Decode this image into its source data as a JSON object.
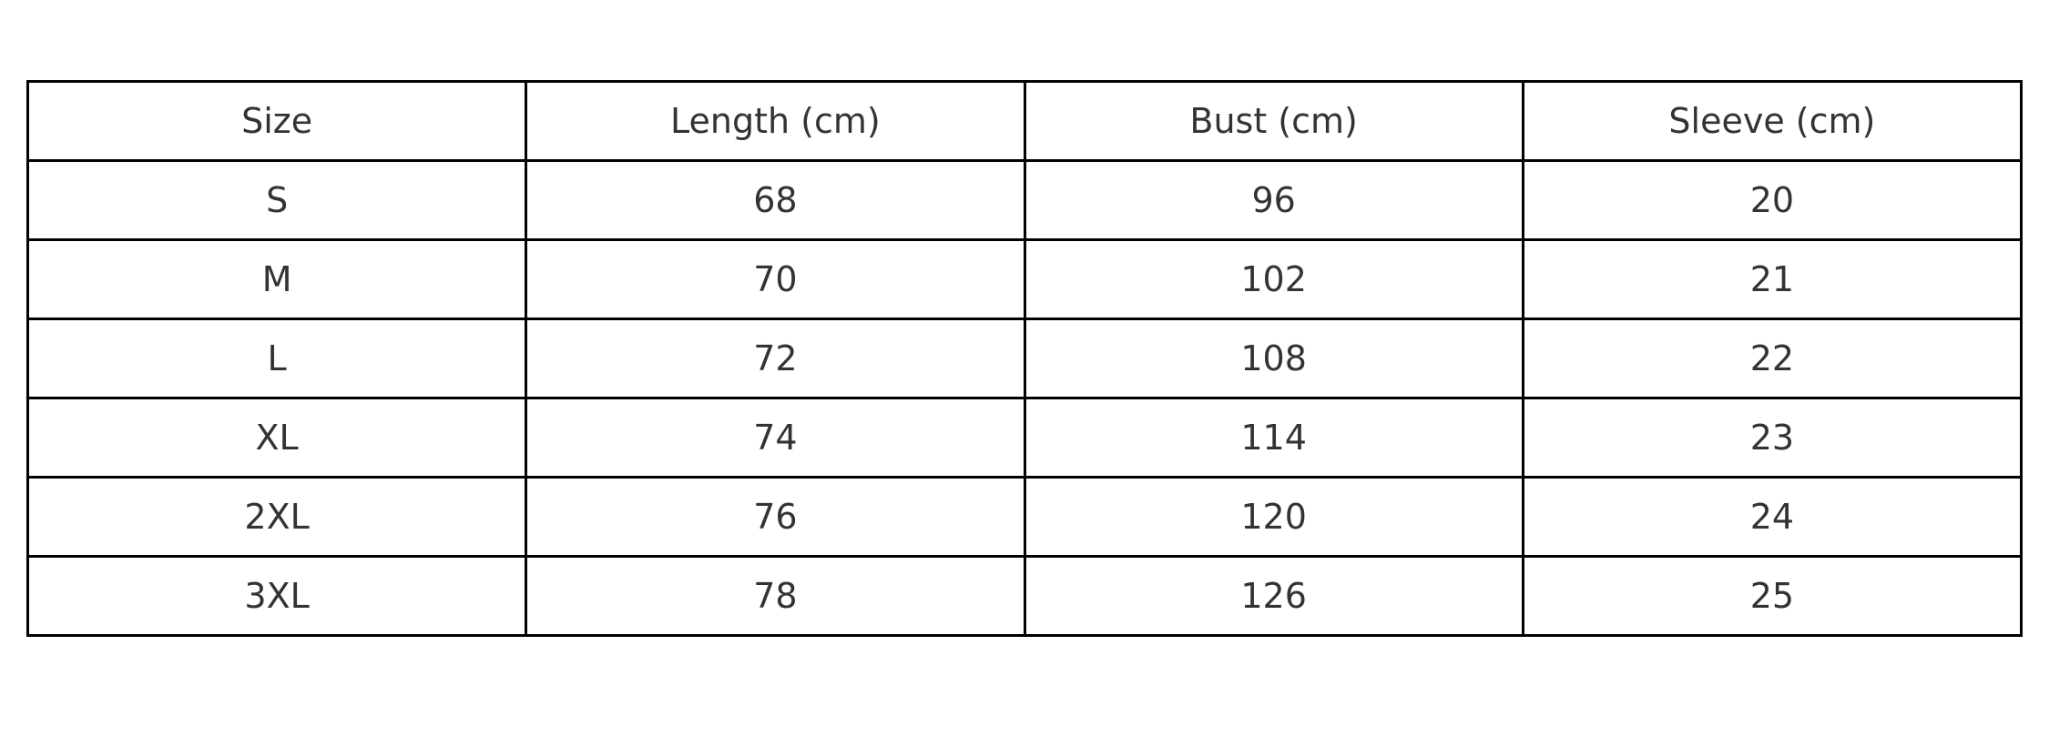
{
  "table": {
    "headers": [
      "Size",
      "Length (cm)",
      "Bust (cm)",
      "Sleeve (cm)"
    ],
    "rows": [
      [
        "S",
        "68",
        "96",
        "20"
      ],
      [
        "M",
        "70",
        "102",
        "21"
      ],
      [
        "L",
        "72",
        "108",
        "22"
      ],
      [
        "XL",
        "74",
        "114",
        "23"
      ],
      [
        "2XL",
        "76",
        "120",
        "24"
      ],
      [
        "3XL",
        "78",
        "126",
        "25"
      ]
    ]
  }
}
